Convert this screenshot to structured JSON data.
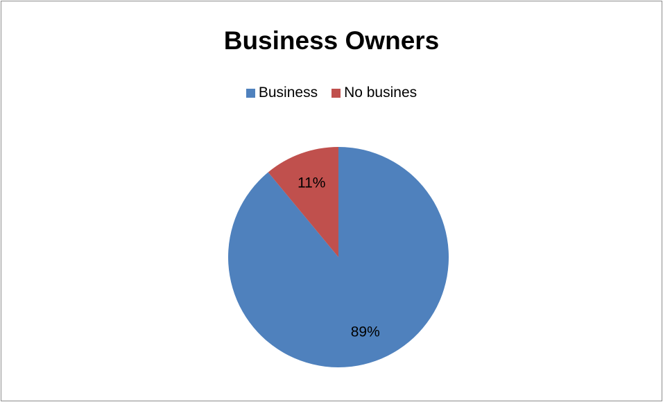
{
  "chart_data": {
    "type": "pie",
    "title": "Business Owners",
    "legend_position": "top",
    "slices": [
      {
        "name": "Business",
        "value": 89,
        "label": "89%",
        "color": "#4f81bd"
      },
      {
        "name": "No busines",
        "value": 11,
        "label": "11%",
        "color": "#c0504d"
      }
    ]
  }
}
